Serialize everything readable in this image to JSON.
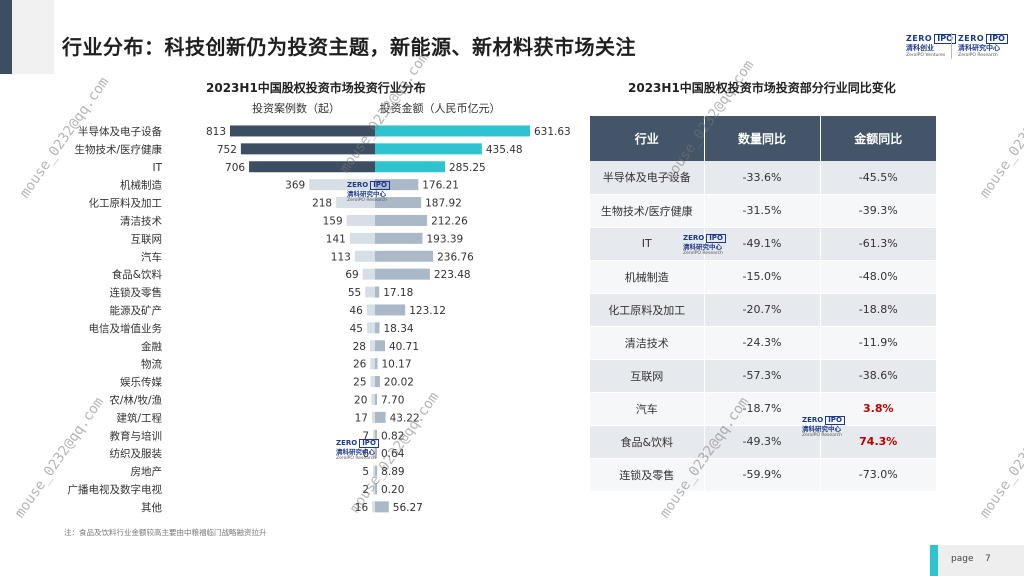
{
  "header": {
    "title": "行业分布：科技创新仍为投资主题，新能源、新材料获市场关注",
    "logo_left": {
      "z": "ZERO",
      "ipo": "IPO",
      "cn": "清科创业",
      "en": "ZeroIPO Ventures"
    },
    "logo_right": {
      "z": "ZERO",
      "ipo": "IPO",
      "cn": "清科研究中心",
      "en": "ZeroIPO Research"
    }
  },
  "chart_data": [
    {
      "type": "bar",
      "title": "2023H1中国股权投资市场投资行业分布",
      "categories": [
        "半导体及电子设备",
        "生物技术/医疗健康",
        "IT",
        "机械制造",
        "化工原料及加工",
        "清洁技术",
        "互联网",
        "汽车",
        "食品&饮料",
        "连锁及零售",
        "能源及矿产",
        "电信及增值业务",
        "金融",
        "物流",
        "娱乐传媒",
        "农/林/牧/渔",
        "建筑/工程",
        "教育与培训",
        "纺织及服装",
        "房地产",
        "广播电视及数字电视",
        "其他"
      ],
      "series": [
        {
          "name": "投资案例数（起）",
          "values": [
            813,
            752,
            706,
            369,
            218,
            159,
            141,
            113,
            69,
            55,
            46,
            45,
            28,
            26,
            25,
            20,
            17,
            7,
            6,
            5,
            2,
            16
          ]
        },
        {
          "name": "投资金额（人民币亿元）",
          "values": [
            631.63,
            435.48,
            285.25,
            176.21,
            187.92,
            212.26,
            193.39,
            236.76,
            223.48,
            17.18,
            123.12,
            18.34,
            40.71,
            10.17,
            20.02,
            7.7,
            43.22,
            0.82,
            0.64,
            8.89,
            0.2,
            56.27
          ]
        }
      ],
      "value_labels_amount": [
        "631.63",
        "435.48",
        "285.25",
        "176.21",
        "187.92",
        "212.26",
        "193.39",
        "236.76",
        "223.48",
        "17.18",
        "123.12",
        "18.34",
        "40.71",
        "10.17",
        "20.02",
        "7.70",
        "43.22",
        "0.82",
        "0.64",
        "8.89",
        "0.20",
        "56.27"
      ],
      "colors": {
        "top_count": "#3d4e63",
        "top_amount": "#2ec4cf",
        "other_count": "#d7dfe6",
        "other_amount": "#aab8c8"
      },
      "highlight_top_n": 3
    },
    {
      "type": "table",
      "title": "2023H1中国股权投资市场投资部分行业同比变化",
      "columns": [
        "行业",
        "数量同比",
        "金额同比"
      ],
      "rows": [
        [
          "半导体及电子设备",
          "-33.6%",
          "-45.5%"
        ],
        [
          "生物技术/医疗健康",
          "-31.5%",
          "-39.3%"
        ],
        [
          "IT",
          "-49.1%",
          "-61.3%"
        ],
        [
          "机械制造",
          "-15.0%",
          "-48.0%"
        ],
        [
          "化工原料及加工",
          "-20.7%",
          "-18.8%"
        ],
        [
          "清洁技术",
          "-24.3%",
          "-11.9%"
        ],
        [
          "互联网",
          "-57.3%",
          "-38.6%"
        ],
        [
          "汽车",
          "-18.7%",
          "3.8%"
        ],
        [
          "食品&饮料",
          "-49.3%",
          "74.3%"
        ],
        [
          "连锁及零售",
          "-59.9%",
          "-73.0%"
        ]
      ],
      "positive_color": "#c00000"
    }
  ],
  "watermark_text": "mouse_0232@qq.com",
  "footnote": "注：食品及饮料行业金额较高主要由中粮福临门战略融资拉升",
  "footer": {
    "page_label": "page",
    "page_number": "7"
  }
}
